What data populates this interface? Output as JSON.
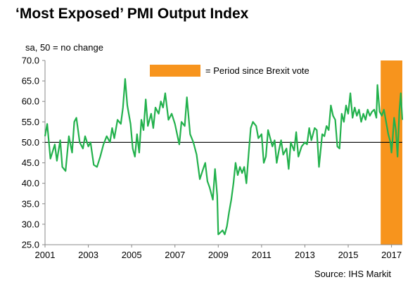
{
  "title": "‘Most Exposed’ PMI Output Index",
  "subtitle": "sa, 50 = no change",
  "source": "Source: IHS Markit",
  "legend": {
    "label": "= Period since Brexit vote"
  },
  "colors": {
    "series": "#22b14c",
    "period": "#f7941d",
    "reference": "#000000",
    "axis": "#888888"
  },
  "chart_data": {
    "type": "line",
    "ylim": [
      25.0,
      70.0
    ],
    "y_ticks": [
      "70.0",
      "65.0",
      "60.0",
      "55.0",
      "50.0",
      "45.0",
      "40.0",
      "35.0",
      "30.0",
      "25.0"
    ],
    "x_ticks": [
      "2001",
      "2003",
      "2005",
      "2007",
      "2009",
      "2011",
      "2013",
      "2015",
      "2017"
    ],
    "xlim": [
      2001.0,
      2017.5
    ],
    "reference_line": 50.0,
    "shaded_period": {
      "start": 2016.5,
      "end": 2017.5
    },
    "series": [
      {
        "values": [
          [
            2001.0,
            51.5
          ],
          [
            2001.1,
            54.5
          ],
          [
            2001.25,
            46.0
          ],
          [
            2001.45,
            49.5
          ],
          [
            2001.55,
            45.5
          ],
          [
            2001.7,
            50.5
          ],
          [
            2001.8,
            44.0
          ],
          [
            2001.95,
            43.0
          ],
          [
            2002.1,
            51.5
          ],
          [
            2002.25,
            47.5
          ],
          [
            2002.35,
            55.0
          ],
          [
            2002.45,
            56.0
          ],
          [
            2002.6,
            50.0
          ],
          [
            2002.75,
            48.5
          ],
          [
            2002.85,
            51.5
          ],
          [
            2003.0,
            49.0
          ],
          [
            2003.1,
            50.0
          ],
          [
            2003.25,
            44.5
          ],
          [
            2003.4,
            44.0
          ],
          [
            2003.55,
            46.5
          ],
          [
            2003.7,
            49.5
          ],
          [
            2003.85,
            51.5
          ],
          [
            2004.0,
            50.0
          ],
          [
            2004.1,
            53.5
          ],
          [
            2004.2,
            51.0
          ],
          [
            2004.35,
            55.5
          ],
          [
            2004.5,
            54.5
          ],
          [
            2004.6,
            58.5
          ],
          [
            2004.7,
            65.5
          ],
          [
            2004.8,
            59.0
          ],
          [
            2004.95,
            54.5
          ],
          [
            2005.05,
            48.5
          ],
          [
            2005.15,
            46.5
          ],
          [
            2005.25,
            52.0
          ],
          [
            2005.35,
            47.5
          ],
          [
            2005.45,
            55.5
          ],
          [
            2005.55,
            53.0
          ],
          [
            2005.65,
            60.5
          ],
          [
            2005.75,
            54.0
          ],
          [
            2005.9,
            57.0
          ],
          [
            2006.0,
            53.5
          ],
          [
            2006.1,
            58.5
          ],
          [
            2006.25,
            57.0
          ],
          [
            2006.35,
            60.0
          ],
          [
            2006.45,
            58.5
          ],
          [
            2006.55,
            62.0
          ],
          [
            2006.7,
            55.5
          ],
          [
            2006.85,
            57.0
          ],
          [
            2007.0,
            54.5
          ],
          [
            2007.1,
            52.0
          ],
          [
            2007.2,
            49.5
          ],
          [
            2007.3,
            55.0
          ],
          [
            2007.45,
            54.0
          ],
          [
            2007.55,
            61.0
          ],
          [
            2007.7,
            52.0
          ],
          [
            2007.85,
            50.0
          ],
          [
            2008.0,
            47.0
          ],
          [
            2008.15,
            41.0
          ],
          [
            2008.3,
            43.5
          ],
          [
            2008.4,
            45.0
          ],
          [
            2008.5,
            40.5
          ],
          [
            2008.6,
            39.0
          ],
          [
            2008.75,
            36.0
          ],
          [
            2008.85,
            43.5
          ],
          [
            2008.95,
            37.0
          ],
          [
            2009.0,
            27.5
          ],
          [
            2009.1,
            28.0
          ],
          [
            2009.2,
            28.5
          ],
          [
            2009.3,
            27.5
          ],
          [
            2009.4,
            29.5
          ],
          [
            2009.5,
            33.0
          ],
          [
            2009.6,
            36.0
          ],
          [
            2009.7,
            40.0
          ],
          [
            2009.8,
            45.0
          ],
          [
            2009.9,
            42.0
          ],
          [
            2010.0,
            44.0
          ],
          [
            2010.1,
            42.5
          ],
          [
            2010.2,
            44.0
          ],
          [
            2010.3,
            40.0
          ],
          [
            2010.4,
            47.0
          ],
          [
            2010.5,
            53.5
          ],
          [
            2010.6,
            55.0
          ],
          [
            2010.75,
            54.0
          ],
          [
            2010.85,
            51.0
          ],
          [
            2011.0,
            52.0
          ],
          [
            2011.1,
            45.0
          ],
          [
            2011.2,
            46.5
          ],
          [
            2011.3,
            53.0
          ],
          [
            2011.4,
            51.0
          ],
          [
            2011.5,
            49.0
          ],
          [
            2011.6,
            50.5
          ],
          [
            2011.7,
            45.0
          ],
          [
            2011.8,
            48.0
          ],
          [
            2011.9,
            50.5
          ],
          [
            2012.0,
            47.0
          ],
          [
            2012.15,
            48.5
          ],
          [
            2012.25,
            43.5
          ],
          [
            2012.35,
            50.0
          ],
          [
            2012.5,
            48.0
          ],
          [
            2012.6,
            52.5
          ],
          [
            2012.7,
            46.5
          ],
          [
            2012.85,
            49.0
          ],
          [
            2013.0,
            50.0
          ],
          [
            2013.1,
            49.5
          ],
          [
            2013.2,
            53.5
          ],
          [
            2013.3,
            50.5
          ],
          [
            2013.45,
            53.5
          ],
          [
            2013.55,
            53.0
          ],
          [
            2013.65,
            44.0
          ],
          [
            2013.8,
            52.0
          ],
          [
            2013.9,
            51.5
          ],
          [
            2014.0,
            54.0
          ],
          [
            2014.1,
            53.0
          ],
          [
            2014.2,
            59.0
          ],
          [
            2014.3,
            56.5
          ],
          [
            2014.4,
            55.5
          ],
          [
            2014.5,
            49.0
          ],
          [
            2014.6,
            48.5
          ],
          [
            2014.7,
            57.0
          ],
          [
            2014.8,
            55.0
          ],
          [
            2014.9,
            59.0
          ],
          [
            2015.0,
            57.0
          ],
          [
            2015.1,
            62.0
          ],
          [
            2015.2,
            56.0
          ],
          [
            2015.3,
            58.5
          ],
          [
            2015.4,
            56.5
          ],
          [
            2015.5,
            58.0
          ],
          [
            2015.6,
            55.0
          ],
          [
            2015.7,
            57.0
          ],
          [
            2015.8,
            55.5
          ],
          [
            2015.9,
            58.0
          ],
          [
            2016.0,
            56.5
          ],
          [
            2016.1,
            57.5
          ],
          [
            2016.2,
            58.0
          ],
          [
            2016.3,
            56.0
          ],
          [
            2016.35,
            64.0
          ],
          [
            2016.45,
            57.5
          ],
          [
            2016.55,
            56.5
          ],
          [
            2016.65,
            58.0
          ],
          [
            2016.75,
            55.0
          ],
          [
            2016.85,
            52.0
          ],
          [
            2016.95,
            50.0
          ],
          [
            2017.0,
            47.5
          ],
          [
            2017.05,
            50.5
          ],
          [
            2017.12,
            56.0
          ],
          [
            2017.2,
            53.0
          ],
          [
            2017.28,
            46.5
          ],
          [
            2017.36,
            57.5
          ],
          [
            2017.43,
            62.0
          ],
          [
            2017.5,
            55.5
          ]
        ]
      }
    ]
  }
}
